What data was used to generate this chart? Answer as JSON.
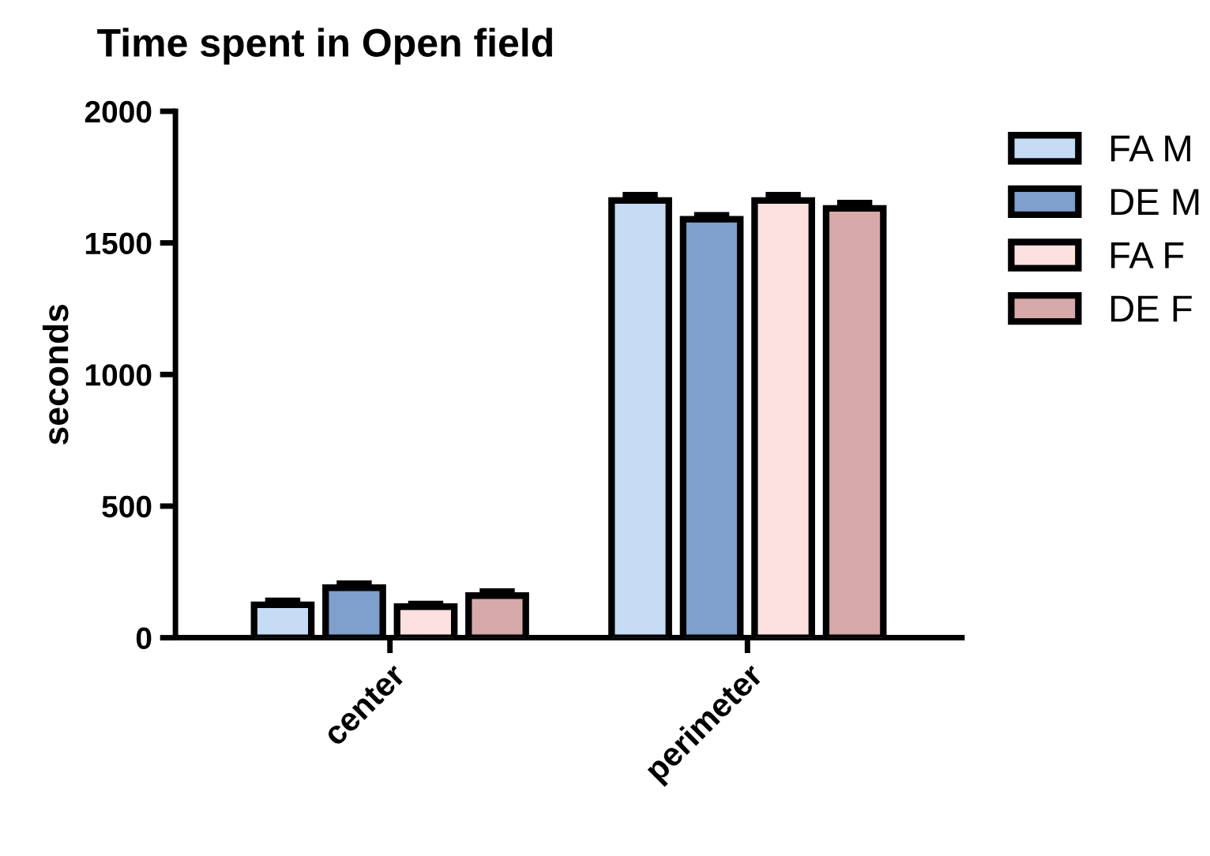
{
  "chart_data": {
    "type": "bar",
    "title": "Time spent in Open field",
    "ylabel": "seconds",
    "categories": [
      "center",
      "perimeter"
    ],
    "series": [
      {
        "name": "FA M",
        "color": "#c6dcf5",
        "values": [
          125,
          1661
        ],
        "errors": [
          15,
          20
        ]
      },
      {
        "name": "DE M",
        "color": "#7f9fcc",
        "values": [
          190,
          1590
        ],
        "errors": [
          15,
          15
        ]
      },
      {
        "name": "FA F",
        "color": "#fde0e0",
        "values": [
          118,
          1661
        ],
        "errors": [
          10,
          20
        ]
      },
      {
        "name": "DE F",
        "color": "#d5aaa8",
        "values": [
          160,
          1631
        ],
        "errors": [
          15,
          20
        ]
      }
    ],
    "ylim": [
      0,
      2000
    ],
    "yticks": [
      0,
      500,
      1000,
      1500,
      2000
    ],
    "legend": "right",
    "grid": false
  }
}
